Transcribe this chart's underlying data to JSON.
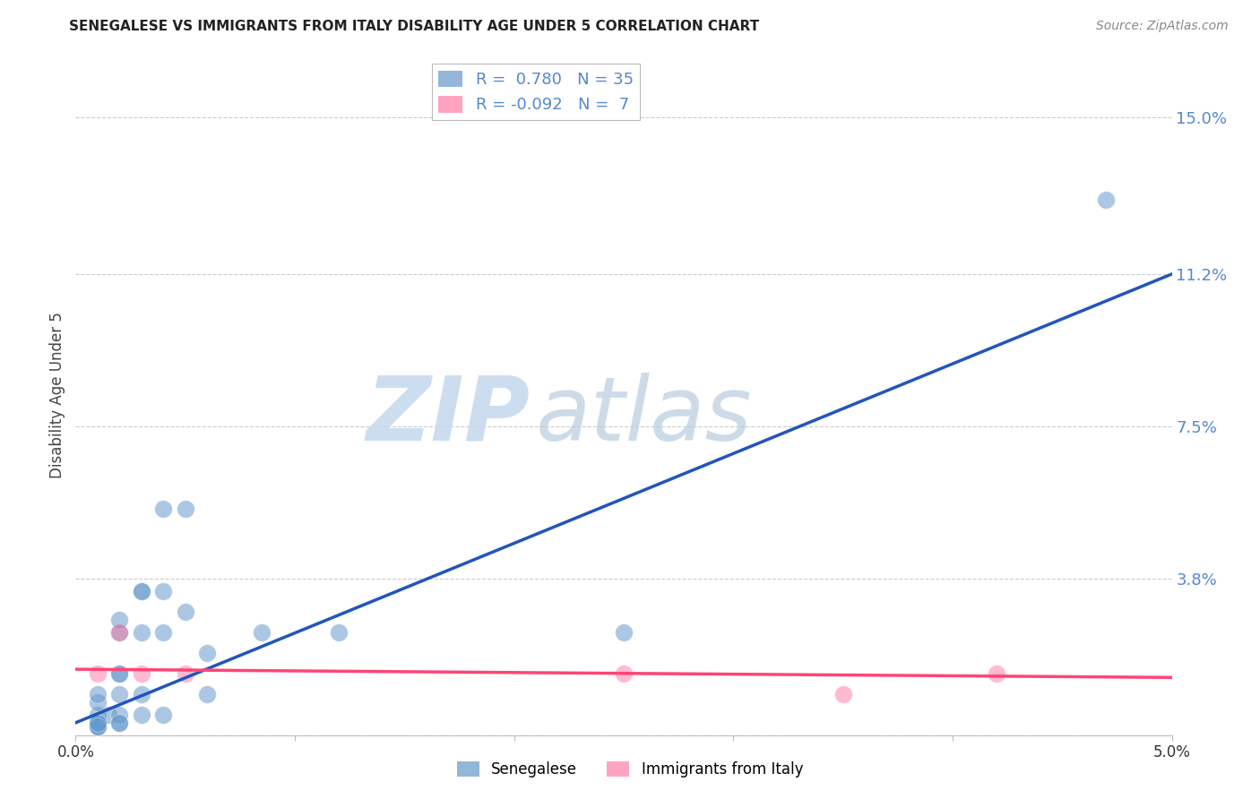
{
  "title": "SENEGALESE VS IMMIGRANTS FROM ITALY DISABILITY AGE UNDER 5 CORRELATION CHART",
  "source": "Source: ZipAtlas.com",
  "ylabel": "Disability Age Under 5",
  "xlim": [
    0.0,
    0.05
  ],
  "ylim": [
    0.0,
    0.165
  ],
  "xticks": [
    0.0,
    0.01,
    0.02,
    0.03,
    0.04,
    0.05
  ],
  "xtick_labels": [
    "0.0%",
    "",
    "",
    "",
    "",
    "5.0%"
  ],
  "ytick_positions": [
    0.0,
    0.038,
    0.075,
    0.112,
    0.15
  ],
  "ytick_labels": [
    "",
    "3.8%",
    "7.5%",
    "11.2%",
    "15.0%"
  ],
  "blue_r": 0.78,
  "blue_n": 35,
  "pink_r": -0.092,
  "pink_n": 7,
  "blue_color": "#6699CC",
  "pink_color": "#FF6699",
  "blue_line_color": "#2255BB",
  "pink_line_color": "#FF4477",
  "ytick_color": "#5588CC",
  "senegalese_x": [
    0.001,
    0.001,
    0.001,
    0.001,
    0.001,
    0.001,
    0.001,
    0.0015,
    0.002,
    0.002,
    0.002,
    0.002,
    0.002,
    0.002,
    0.002,
    0.003,
    0.003,
    0.003,
    0.003,
    0.004,
    0.004,
    0.004,
    0.005,
    0.005,
    0.006,
    0.006,
    0.0085,
    0.012,
    0.025,
    0.047,
    0.001,
    0.001,
    0.002,
    0.003,
    0.004
  ],
  "senegalese_y": [
    0.005,
    0.008,
    0.003,
    0.003,
    0.01,
    0.002,
    0.002,
    0.005,
    0.003,
    0.015,
    0.015,
    0.025,
    0.028,
    0.005,
    0.01,
    0.01,
    0.035,
    0.035,
    0.025,
    0.035,
    0.025,
    0.055,
    0.055,
    0.03,
    0.01,
    0.02,
    0.025,
    0.025,
    0.025,
    0.13,
    0.002,
    0.003,
    0.003,
    0.005,
    0.005
  ],
  "italy_x": [
    0.001,
    0.002,
    0.003,
    0.005,
    0.025,
    0.035,
    0.042
  ],
  "italy_y": [
    0.015,
    0.025,
    0.015,
    0.015,
    0.015,
    0.01,
    0.015
  ],
  "blue_line_x0": 0.0,
  "blue_line_y0": 0.003,
  "blue_line_x1": 0.05,
  "blue_line_y1": 0.112,
  "pink_line_x0": 0.0,
  "pink_line_y0": 0.016,
  "pink_line_x1": 0.05,
  "pink_line_y1": 0.014,
  "watermark_zip": "ZIP",
  "watermark_atlas": "atlas",
  "legend_blue": "Senegalese",
  "legend_pink": "Immigrants from Italy",
  "background_color": "#ffffff",
  "grid_color": "#cccccc",
  "grid_style": "--"
}
